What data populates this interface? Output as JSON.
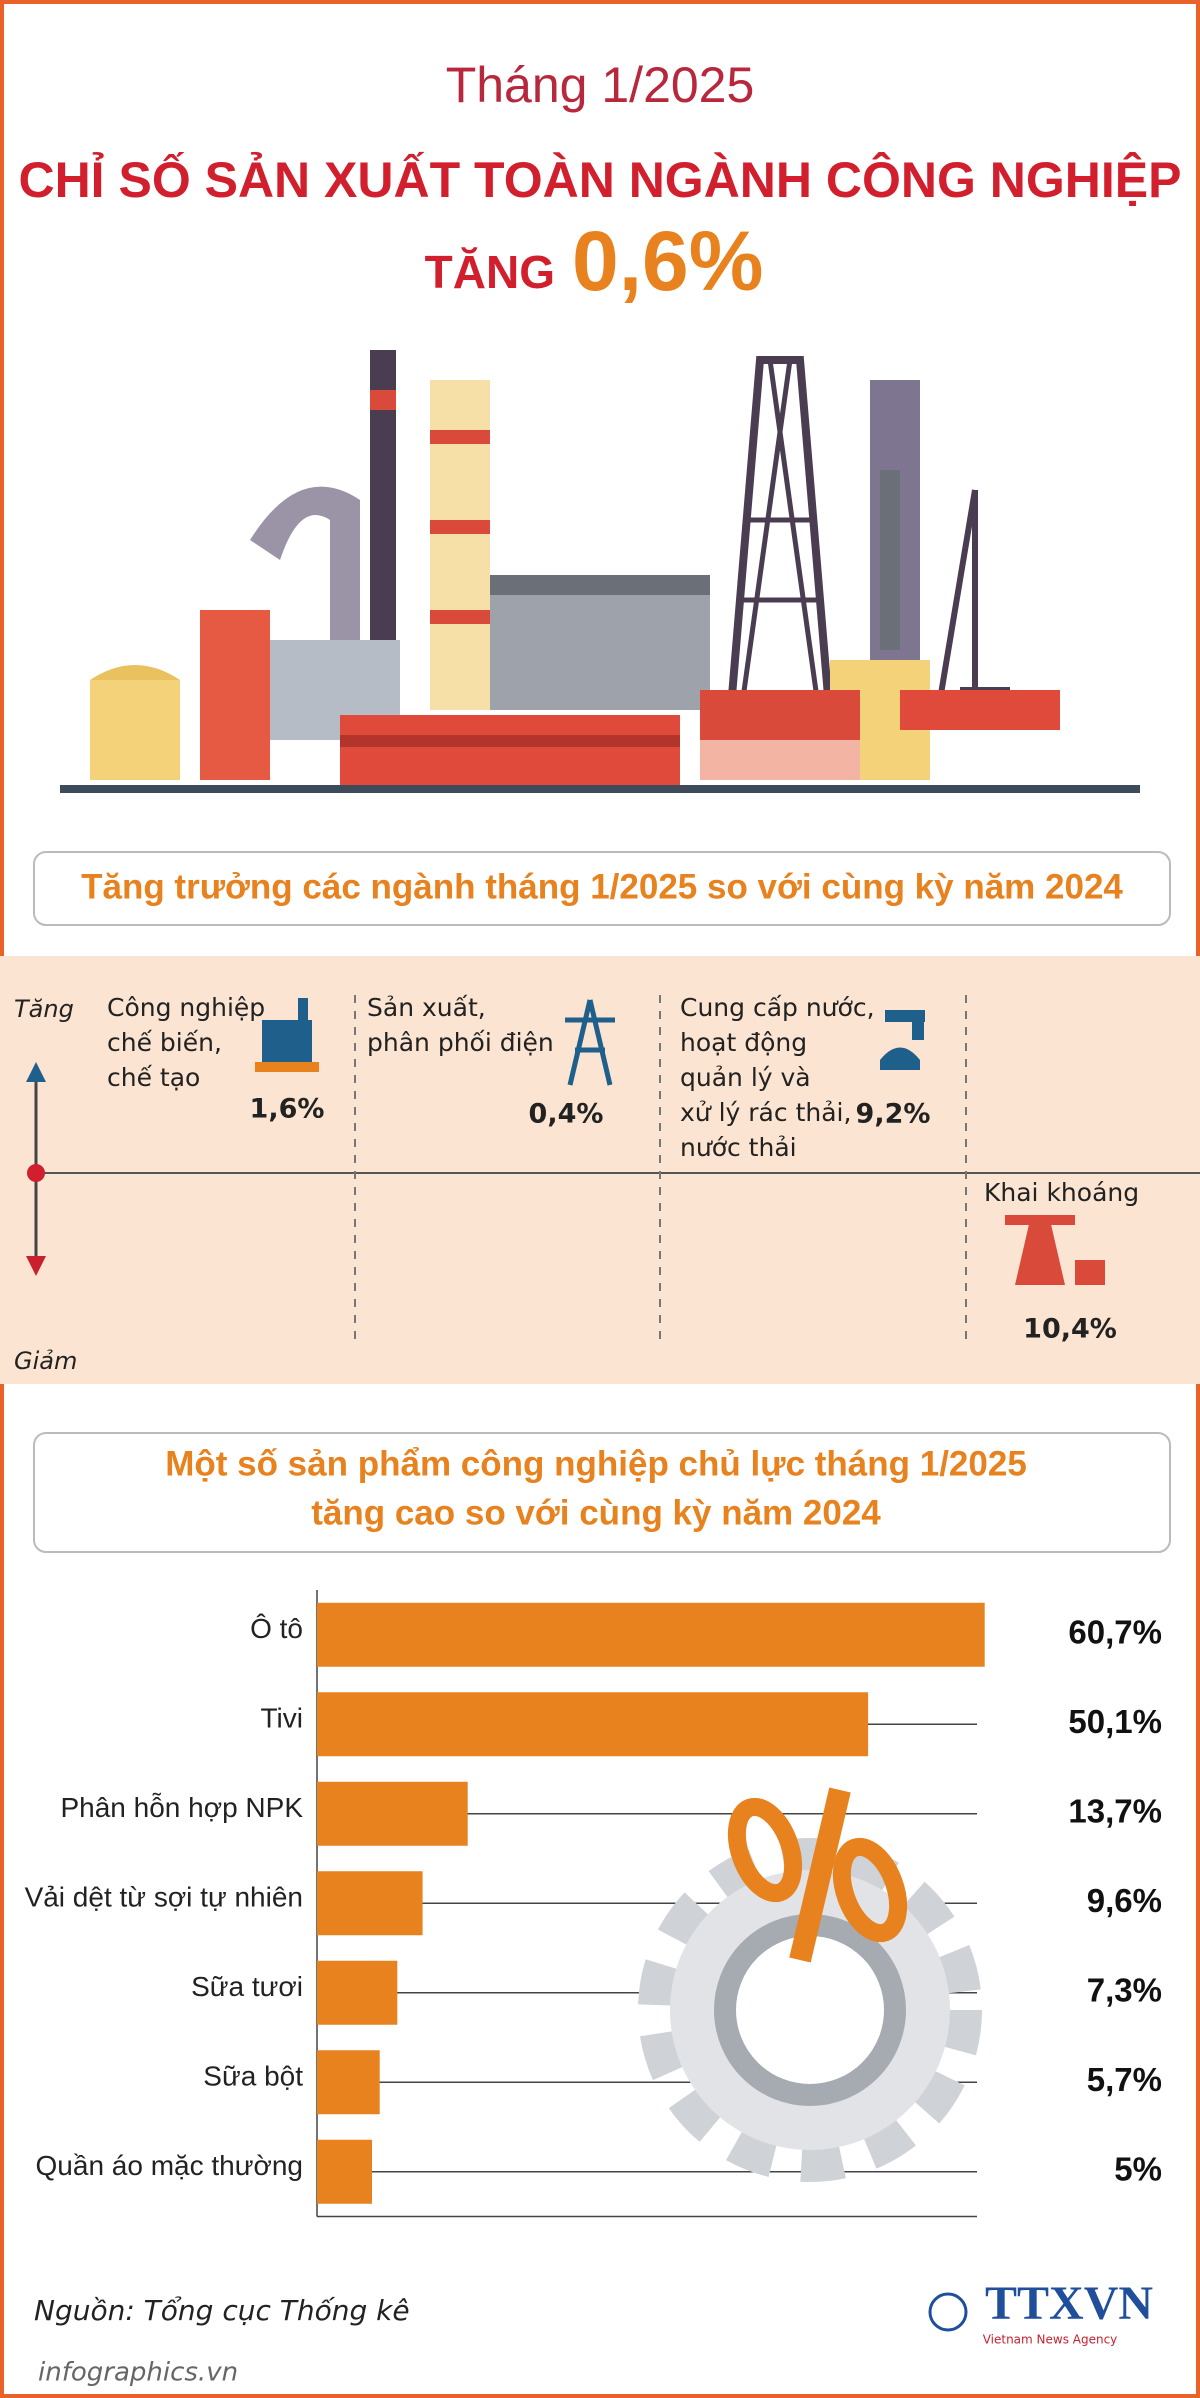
{
  "header": {
    "month": "Tháng 1/2025",
    "headline": "CHỈ SỐ SẢN XUẤT TOÀN NGÀNH CÔNG NGHIỆP",
    "increase_word": "TĂNG",
    "increase_value": "0,6%"
  },
  "sectors": {
    "title": "Tăng trưởng các ngành tháng 1/2025 so với cùng kỳ năm 2024",
    "up_label": "Tăng",
    "down_label": "Giảm",
    "items": [
      {
        "label": [
          "Công nghiệp",
          "chế biến,",
          "chế tạo"
        ],
        "value": "1,6%"
      },
      {
        "label": [
          "Sản xuất,",
          "phân phối điện"
        ],
        "value": "0,4%"
      },
      {
        "label": [
          "Cung cấp nước,",
          "hoạt động",
          "quản lý và",
          "xử lý rác thải,",
          "nước thải"
        ],
        "value": "9,2%"
      },
      {
        "label": [
          "Khai khoáng"
        ],
        "value": "10,4%"
      }
    ]
  },
  "chart_data": {
    "type": "bar",
    "orientation": "horizontal",
    "title": [
      "Một số sản phẩm công nghiệp chủ lực tháng 1/2025",
      "tăng cao so với cùng kỳ năm 2024"
    ],
    "categories": [
      "Ô tô",
      "Tivi",
      "Phân hỗn hợp NPK",
      "Vải dệt từ sợi tự nhiên",
      "Sữa tươi",
      "Sữa bột",
      "Quần áo mặc thường"
    ],
    "values": [
      60.7,
      50.1,
      13.7,
      9.6,
      7.3,
      5.7,
      5
    ],
    "value_labels": [
      "60,7%",
      "50,1%",
      "13,7%",
      "9,6%",
      "7,3%",
      "5,7%",
      "5%"
    ],
    "color": "#e8821e",
    "xlim": [
      0,
      60
    ]
  },
  "footer": {
    "source": "Nguồn: Tổng cục Thống kê",
    "logo": "TTXVN",
    "agency": "Vietnam News Agency",
    "site": "infographics.vn"
  }
}
